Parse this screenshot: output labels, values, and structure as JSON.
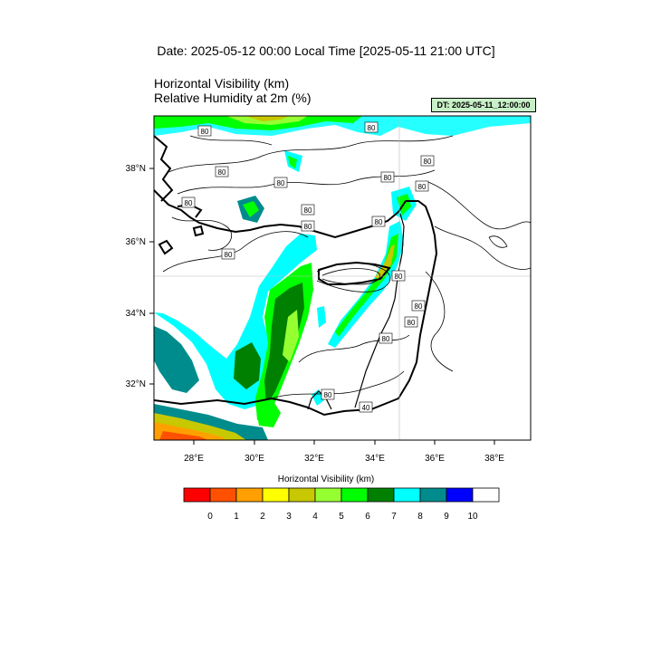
{
  "header": {
    "date_line": "Date: 2025-05-12  00:00 Local Time [2025-05-11  21:00 UTC]",
    "variable_1": "Horizontal Visibility   (km)",
    "variable_2": "Relative Humidity at 2m   (%)",
    "dt_label": "DT: 2025-05-11_12:00:00"
  },
  "map": {
    "lon_ticks": [
      "28°E",
      "30°E",
      "32°E",
      "34°E",
      "36°E",
      "38°E"
    ],
    "lat_ticks": [
      "38°N",
      "36°N",
      "34°N",
      "32°N"
    ],
    "contour_labels": [
      "80",
      "80",
      "80",
      "80",
      "80",
      "80",
      "80",
      "80",
      "80",
      "80",
      "80",
      "80",
      "80",
      "80",
      "80",
      "80",
      "80",
      "40"
    ]
  },
  "colorbar": {
    "title": "Horizontal Visibility  (km)",
    "colors": [
      "#ff0000",
      "#ff5000",
      "#ffa000",
      "#ffff00",
      "#c8c800",
      "#96ff32",
      "#00ff00",
      "#008000",
      "#00ffff",
      "#008c8c",
      "#0000ff",
      "#ffffff"
    ],
    "tick_labels": [
      "0",
      "1",
      "2",
      "3",
      "4",
      "5",
      "6",
      "7",
      "8",
      "9",
      "10"
    ]
  }
}
